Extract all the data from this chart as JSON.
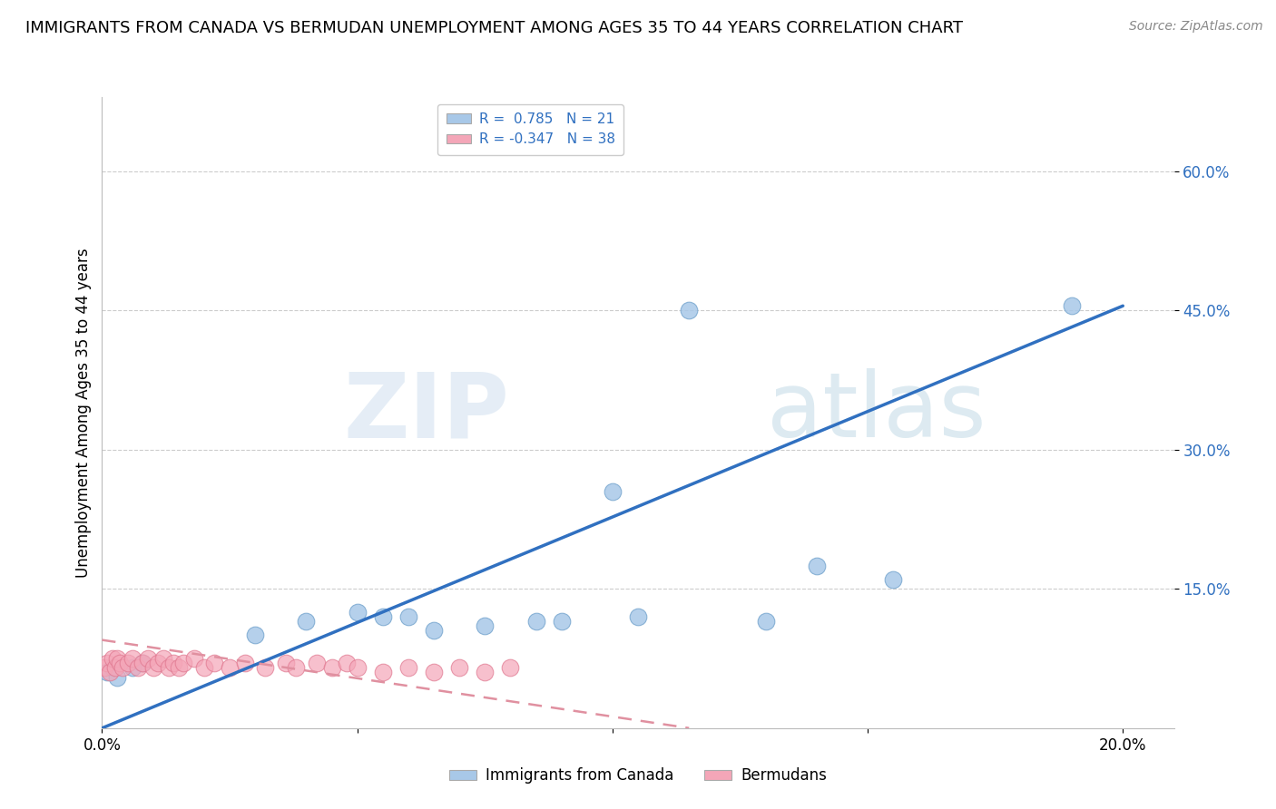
{
  "title": "IMMIGRANTS FROM CANADA VS BERMUDAN UNEMPLOYMENT AMONG AGES 35 TO 44 YEARS CORRELATION CHART",
  "source": "Source: ZipAtlas.com",
  "ylabel": "Unemployment Among Ages 35 to 44 years",
  "xlim": [
    0.0,
    0.21
  ],
  "ylim": [
    0.0,
    0.68
  ],
  "yticks": [
    0.15,
    0.3,
    0.45,
    0.6
  ],
  "ytick_labels": [
    "15.0%",
    "30.0%",
    "45.0%",
    "60.0%"
  ],
  "xticks": [
    0.0,
    0.05,
    0.1,
    0.15,
    0.2
  ],
  "xtick_labels": [
    "0.0%",
    "",
    "",
    "",
    "20.0%"
  ],
  "blue_scatter_x": [
    0.001,
    0.002,
    0.003,
    0.006,
    0.008,
    0.03,
    0.04,
    0.05,
    0.055,
    0.06,
    0.065,
    0.075,
    0.085,
    0.09,
    0.1,
    0.105,
    0.115,
    0.13,
    0.14,
    0.155,
    0.19
  ],
  "blue_scatter_y": [
    0.06,
    0.065,
    0.055,
    0.065,
    0.07,
    0.1,
    0.115,
    0.125,
    0.12,
    0.12,
    0.105,
    0.11,
    0.115,
    0.115,
    0.255,
    0.12,
    0.45,
    0.115,
    0.175,
    0.16,
    0.455
  ],
  "pink_scatter_x": [
    0.0005,
    0.001,
    0.0015,
    0.002,
    0.0025,
    0.003,
    0.0035,
    0.004,
    0.005,
    0.006,
    0.007,
    0.008,
    0.009,
    0.01,
    0.011,
    0.012,
    0.013,
    0.014,
    0.015,
    0.016,
    0.018,
    0.02,
    0.022,
    0.025,
    0.028,
    0.032,
    0.036,
    0.038,
    0.042,
    0.045,
    0.048,
    0.05,
    0.055,
    0.06,
    0.065,
    0.07,
    0.075,
    0.08
  ],
  "pink_scatter_y": [
    0.065,
    0.07,
    0.06,
    0.075,
    0.065,
    0.075,
    0.07,
    0.065,
    0.07,
    0.075,
    0.065,
    0.07,
    0.075,
    0.065,
    0.07,
    0.075,
    0.065,
    0.07,
    0.065,
    0.07,
    0.075,
    0.065,
    0.07,
    0.065,
    0.07,
    0.065,
    0.07,
    0.065,
    0.07,
    0.065,
    0.07,
    0.065,
    0.06,
    0.065,
    0.06,
    0.065,
    0.06,
    0.065
  ],
  "blue_line_x": [
    0.0,
    0.2
  ],
  "blue_line_y": [
    0.0,
    0.455
  ],
  "pink_line_x": [
    0.0,
    0.115
  ],
  "pink_line_y": [
    0.095,
    0.0
  ],
  "blue_color": "#A8C8E8",
  "pink_color": "#F4A6B8",
  "blue_scatter_edge": "#7AA8D0",
  "pink_scatter_edge": "#E07890",
  "blue_line_color": "#3070C0",
  "pink_line_color": "#E090A0",
  "grid_color": "#CCCCCC",
  "watermark_zip": "ZIP",
  "watermark_atlas": "atlas",
  "title_fontsize": 13,
  "label_fontsize": 12,
  "tick_fontsize": 12,
  "source_fontsize": 10
}
